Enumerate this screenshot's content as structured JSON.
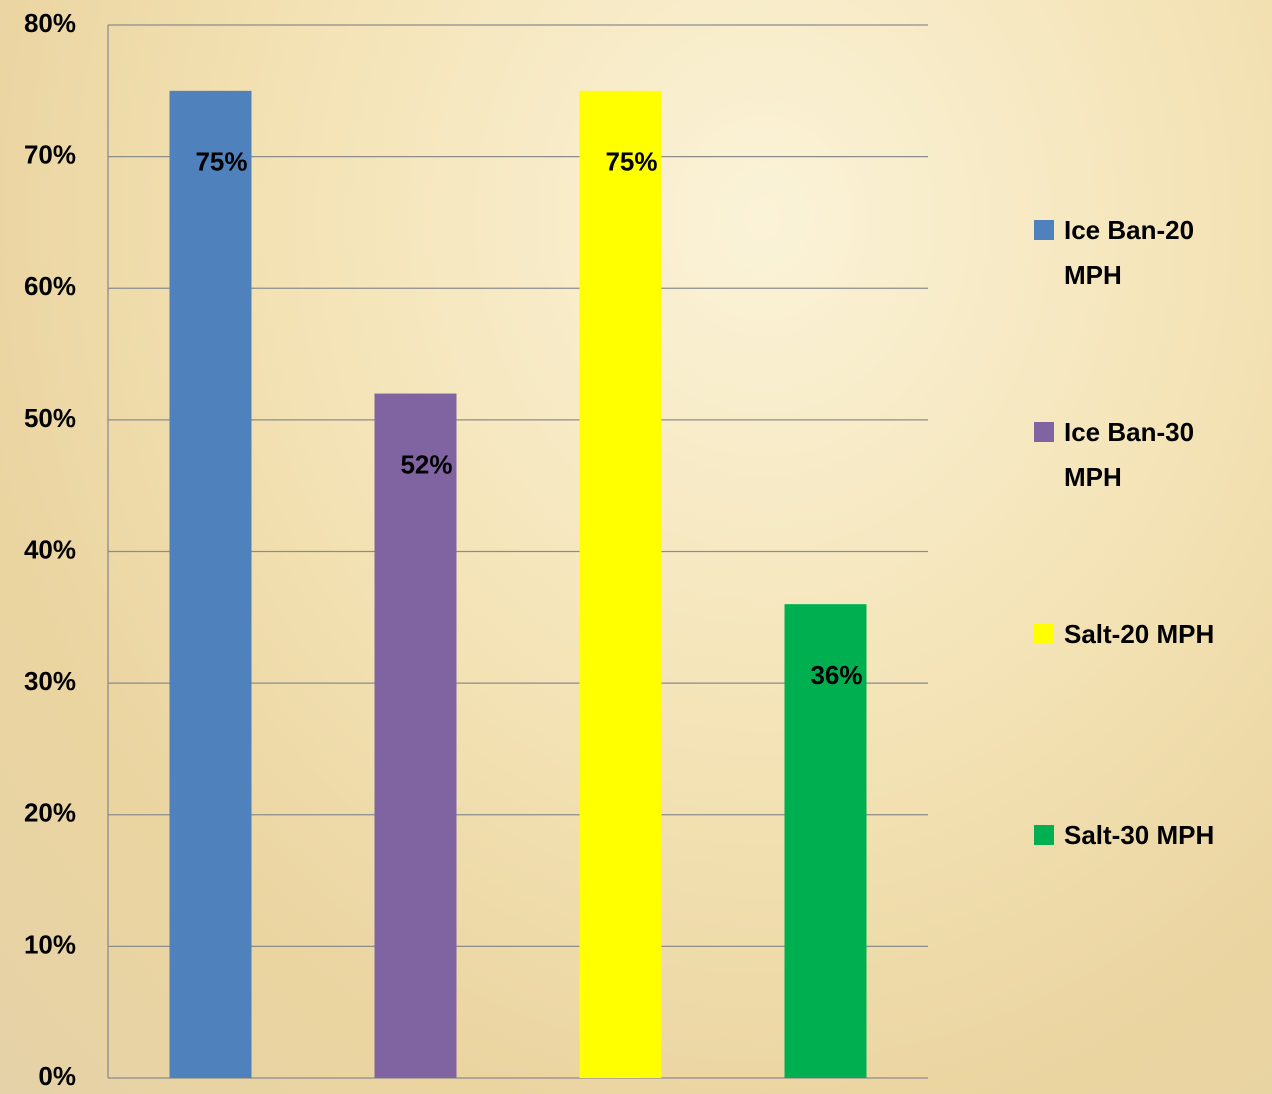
{
  "chart_data": {
    "type": "bar",
    "series": [
      {
        "name": "Ice Ban-20 MPH",
        "color": "#4f81bd",
        "values": [
          75
        ],
        "value_labels": [
          "75%"
        ]
      },
      {
        "name": "Ice Ban-30 MPH",
        "color": "#8064a2",
        "values": [
          52
        ],
        "value_labels": [
          "52%"
        ]
      },
      {
        "name": "Salt-20 MPH",
        "color": "#ffff00",
        "values": [
          75
        ],
        "value_labels": [
          "75%"
        ]
      },
      {
        "name": "Salt-30 MPH",
        "color": "#00b050",
        "values": [
          36
        ],
        "value_labels": [
          "36%"
        ]
      }
    ],
    "ylim": [
      0,
      80
    ],
    "yticks": [
      {
        "value": 0,
        "label": "0%"
      },
      {
        "value": 10,
        "label": "10%"
      },
      {
        "value": 20,
        "label": "20%"
      },
      {
        "value": 30,
        "label": "30%"
      },
      {
        "value": 40,
        "label": "40%"
      },
      {
        "value": 50,
        "label": "50%"
      },
      {
        "value": 60,
        "label": "60%"
      },
      {
        "value": 70,
        "label": "70%"
      },
      {
        "value": 80,
        "label": "80%"
      }
    ],
    "grid": true,
    "legend": "right"
  }
}
